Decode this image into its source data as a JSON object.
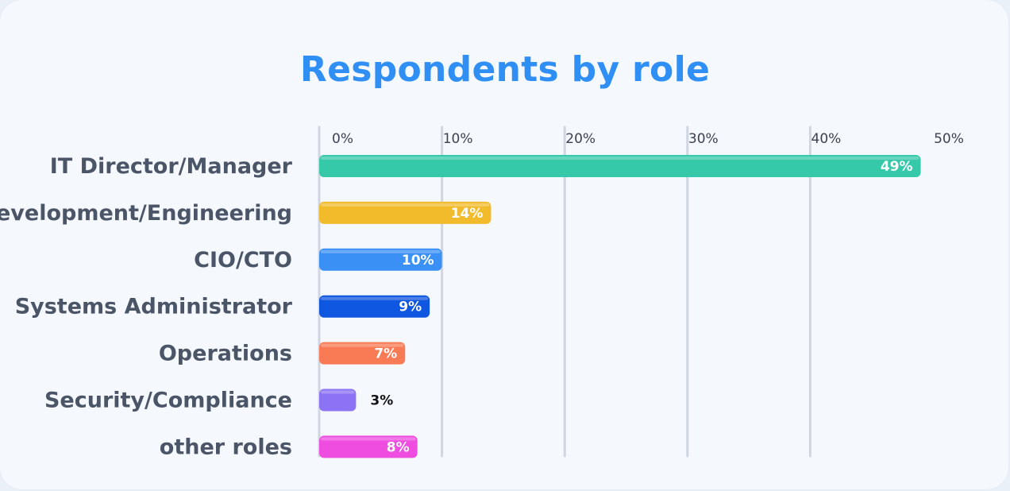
{
  "chart_data": {
    "type": "bar",
    "orientation": "horizontal",
    "title": "Respondents by role",
    "categories": [
      "IT Director/Manager",
      "Development/Engineering",
      "CIO/CTO",
      "Systems Administrator",
      "Operations",
      "Security/Compliance",
      "other roles"
    ],
    "values": [
      49,
      14,
      10,
      9,
      7,
      3,
      8
    ],
    "value_labels": [
      "49%",
      "14%",
      "10%",
      "9%",
      "7%",
      "3%",
      "8%"
    ],
    "colors": [
      "#36c9a9",
      "#f1bb2c",
      "#3b90f5",
      "#0f56e0",
      "#f97b56",
      "#8c72f5",
      "#ee4de0"
    ],
    "x_ticks": [
      0,
      10,
      20,
      30,
      40,
      50
    ],
    "x_tick_labels": [
      "0%",
      "10%",
      "20%",
      "30%",
      "40%",
      "50%"
    ],
    "xlim": [
      0,
      50
    ],
    "grid": true,
    "xlabel": "",
    "ylabel": ""
  }
}
